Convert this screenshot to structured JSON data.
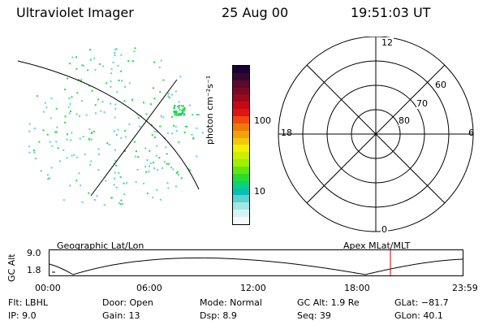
{
  "header": {
    "instrument": "Ultraviolet Imager",
    "date": "25 Aug 00",
    "time": "19:51:03 UT"
  },
  "colorbar": {
    "label": "photon cm⁻²s⁻¹",
    "ticks": [
      "100",
      "10"
    ],
    "colors": [
      "#1a0033",
      "#330a2e",
      "#5a0a2c",
      "#7a0a24",
      "#9a0a1a",
      "#c40a16",
      "#e01414",
      "#f04a0c",
      "#f07a08",
      "#f0a20a",
      "#f0c80e",
      "#f0f000",
      "#c8f000",
      "#a0f000",
      "#64e60a",
      "#28dc32",
      "#0ad27a",
      "#0abeb4",
      "#5ad2d2",
      "#a0e6e6",
      "#d8f2f2",
      "#f6fafa"
    ]
  },
  "polar": {
    "mlt_labels": [
      "12",
      "6",
      "0",
      "18"
    ],
    "lat_labels": [
      "60",
      "70",
      "80"
    ]
  },
  "orbit": {
    "left_label": "Geographic Lat/Lon",
    "right_label": "Apex MLat/MLT",
    "y_axis_label": "GC Alt",
    "y_ticks": [
      "9.0",
      "1.8"
    ],
    "x_ticks": [
      "00:00",
      "06:00",
      "12:00",
      "18:00",
      "23:59"
    ]
  },
  "info": {
    "flt": "Flt:  LBHL",
    "ip": "IP:  9.0",
    "door": "Door:  Open",
    "gain": "Gain:  13",
    "mode": "Mode:  Normal",
    "dsp": "Dsp:      8.9",
    "gcalt": "GC Alt:  1.9 Re",
    "seq": "Seq:  39",
    "glat": "GLat:  −81.7",
    "glon": "GLon:   40.1"
  }
}
